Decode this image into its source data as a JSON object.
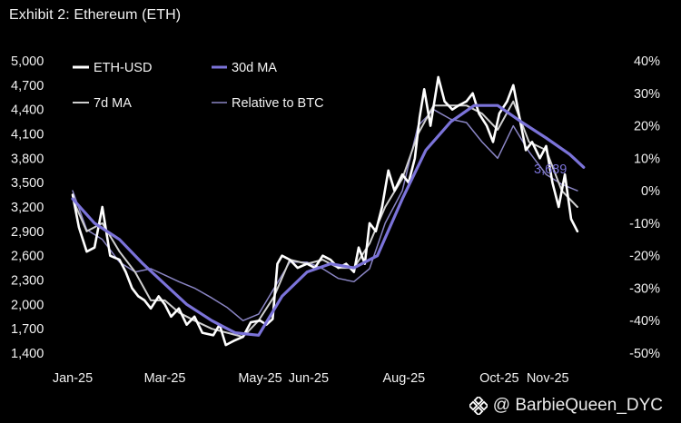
{
  "header": {
    "title": "Exhibit 2: Ethereum (ETH)"
  },
  "watermark": {
    "text": "@ BarbieQueen_DYC",
    "icon": "binance-diamond-icon"
  },
  "colors": {
    "background": "#000000",
    "eth_usd": "#ffffff",
    "ma30": "#7b73d9",
    "ma7": "#cfcfcf",
    "rel_btc": "#8a85c4",
    "text": "#f2f2f2"
  },
  "chart_data": {
    "type": "line",
    "title": "Exhibit 2: Ethereum (ETH)",
    "x_ticks": [
      "Jan-25",
      "Mar-25",
      "May-25",
      "Jun-25",
      "Aug-25",
      "Oct-25",
      "Nov-25"
    ],
    "x_tick_dates": [
      "2025-01-01",
      "2025-03-01",
      "2025-05-01",
      "2025-06-01",
      "2025-08-01",
      "2025-10-01",
      "2025-11-01"
    ],
    "xlim": [
      "2025-01-01",
      "2025-12-04"
    ],
    "ylim": [
      1400,
      5000
    ],
    "y_ticks": [
      "1,400",
      "1,700",
      "2,000",
      "2,300",
      "2,600",
      "2,900",
      "3,200",
      "3,500",
      "3,800",
      "4,100",
      "4,400",
      "4,700",
      "5,000"
    ],
    "y_tick_values": [
      1400,
      1700,
      2000,
      2300,
      2600,
      2900,
      3200,
      3500,
      3800,
      4100,
      4400,
      4700,
      5000
    ],
    "y2lim": [
      -50,
      40
    ],
    "y2_ticks": [
      "40%",
      "30%",
      "20%",
      "10%",
      "0%",
      "-10%",
      "-20%",
      "-30%",
      "-40%",
      "-50%"
    ],
    "y2_tick_values": [
      40,
      30,
      20,
      10,
      0,
      -10,
      -20,
      -30,
      -40,
      -50
    ],
    "end_label": "3,689",
    "legend_position": "top-left",
    "grid": false,
    "series": [
      {
        "name": "ETH-USD",
        "axis": "left",
        "dates": [
          "2025-01-01",
          "2025-01-05",
          "2025-01-10",
          "2025-01-15",
          "2025-01-20",
          "2025-01-25",
          "2025-01-31",
          "2025-02-04",
          "2025-02-08",
          "2025-02-12",
          "2025-02-16",
          "2025-02-20",
          "2025-02-25",
          "2025-03-01",
          "2025-03-05",
          "2025-03-10",
          "2025-03-15",
          "2025-03-20",
          "2025-03-25",
          "2025-04-01",
          "2025-04-05",
          "2025-04-09",
          "2025-04-14",
          "2025-04-20",
          "2025-04-25",
          "2025-05-01",
          "2025-05-05",
          "2025-05-09",
          "2025-05-12",
          "2025-05-15",
          "2025-05-20",
          "2025-05-25",
          "2025-05-31",
          "2025-06-05",
          "2025-06-10",
          "2025-06-15",
          "2025-06-20",
          "2025-06-25",
          "2025-06-30",
          "2025-07-03",
          "2025-07-07",
          "2025-07-10",
          "2025-07-14",
          "2025-07-18",
          "2025-07-22",
          "2025-07-26",
          "2025-07-31",
          "2025-08-04",
          "2025-08-08",
          "2025-08-11",
          "2025-08-14",
          "2025-08-18",
          "2025-08-23",
          "2025-08-27",
          "2025-09-01",
          "2025-09-05",
          "2025-09-10",
          "2025-09-14",
          "2025-09-18",
          "2025-09-23",
          "2025-09-27",
          "2025-10-01",
          "2025-10-06",
          "2025-10-10",
          "2025-10-14",
          "2025-10-18",
          "2025-10-22",
          "2025-10-27",
          "2025-10-31",
          "2025-11-04",
          "2025-11-08",
          "2025-11-12",
          "2025-11-16",
          "2025-11-20"
        ],
        "values": [
          3350,
          2950,
          2650,
          2700,
          3200,
          2600,
          2550,
          2400,
          2200,
          2100,
          2050,
          1950,
          2100,
          2000,
          1850,
          1950,
          1750,
          1850,
          1650,
          1620,
          1750,
          1500,
          1550,
          1600,
          1780,
          1800,
          1750,
          1820,
          2500,
          2600,
          2550,
          2450,
          2500,
          2450,
          2600,
          2550,
          2450,
          2500,
          2400,
          2700,
          2500,
          3000,
          2900,
          3200,
          3650,
          3400,
          3600,
          3500,
          3800,
          4300,
          4650,
          4200,
          4800,
          4500,
          4400,
          4450,
          4500,
          4600,
          4350,
          4200,
          4000,
          4350,
          4500,
          4700,
          4300,
          3900,
          4000,
          3800,
          3950,
          3500,
          3200,
          3600,
          3050,
          2900
        ]
      },
      {
        "name": "30d MA",
        "axis": "left",
        "dates": [
          "2025-01-01",
          "2025-01-15",
          "2025-01-31",
          "2025-02-15",
          "2025-03-01",
          "2025-03-15",
          "2025-03-31",
          "2025-04-15",
          "2025-04-30",
          "2025-05-15",
          "2025-05-31",
          "2025-06-15",
          "2025-06-30",
          "2025-07-15",
          "2025-07-31",
          "2025-08-15",
          "2025-08-31",
          "2025-09-15",
          "2025-09-30",
          "2025-10-15",
          "2025-10-31",
          "2025-11-15",
          "2025-11-24"
        ],
        "values": [
          3300,
          3000,
          2800,
          2500,
          2250,
          2000,
          1800,
          1650,
          1620,
          2100,
          2400,
          2500,
          2450,
          2600,
          3300,
          3900,
          4250,
          4450,
          4450,
          4250,
          4050,
          3850,
          3689
        ]
      },
      {
        "name": "7d MA",
        "axis": "left",
        "dates": [
          "2025-01-01",
          "2025-01-10",
          "2025-01-20",
          "2025-01-31",
          "2025-02-10",
          "2025-02-20",
          "2025-03-01",
          "2025-03-10",
          "2025-03-20",
          "2025-03-31",
          "2025-04-10",
          "2025-04-20",
          "2025-04-30",
          "2025-05-10",
          "2025-05-20",
          "2025-05-31",
          "2025-06-10",
          "2025-06-20",
          "2025-06-30",
          "2025-07-10",
          "2025-07-20",
          "2025-07-31",
          "2025-08-10",
          "2025-08-20",
          "2025-08-31",
          "2025-09-10",
          "2025-09-20",
          "2025-09-30",
          "2025-10-10",
          "2025-10-20",
          "2025-10-31",
          "2025-11-10",
          "2025-11-20"
        ],
        "values": [
          3300,
          2900,
          3000,
          2650,
          2400,
          2050,
          2050,
          1900,
          1800,
          1700,
          1650,
          1600,
          1800,
          2100,
          2550,
          2500,
          2550,
          2450,
          2450,
          2750,
          3200,
          3550,
          4100,
          4450,
          4450,
          4450,
          4350,
          4150,
          4500,
          4000,
          3900,
          3400,
          3200
        ]
      },
      {
        "name": "Relative to BTC",
        "axis": "right",
        "dates": [
          "2025-01-01",
          "2025-01-10",
          "2025-01-20",
          "2025-01-31",
          "2025-02-10",
          "2025-02-20",
          "2025-03-01",
          "2025-03-10",
          "2025-03-20",
          "2025-03-31",
          "2025-04-10",
          "2025-04-20",
          "2025-04-30",
          "2025-05-10",
          "2025-05-20",
          "2025-05-31",
          "2025-06-10",
          "2025-06-20",
          "2025-06-30",
          "2025-07-10",
          "2025-07-20",
          "2025-07-31",
          "2025-08-10",
          "2025-08-20",
          "2025-08-31",
          "2025-09-10",
          "2025-09-20",
          "2025-09-30",
          "2025-10-10",
          "2025-10-20",
          "2025-10-31",
          "2025-11-10",
          "2025-11-20"
        ],
        "values": [
          0,
          -12,
          -15,
          -22,
          -25,
          -24,
          -26,
          -28,
          -30,
          -33,
          -36,
          -40,
          -38,
          -30,
          -22,
          -22,
          -24,
          -27,
          -28,
          -24,
          -10,
          0,
          20,
          25,
          22,
          21,
          15,
          10,
          20,
          12,
          5,
          2,
          0
        ]
      }
    ]
  }
}
